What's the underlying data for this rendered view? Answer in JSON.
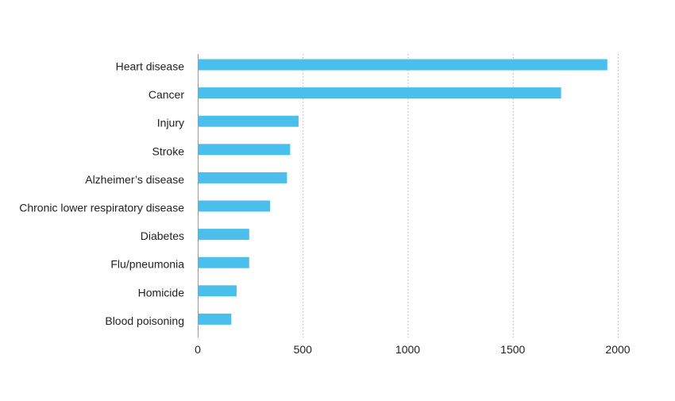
{
  "chart_data": {
    "type": "bar",
    "orientation": "horizontal",
    "title": "",
    "xlabel": "",
    "ylabel": "",
    "categories": [
      "Heart disease",
      "Cancer",
      "Injury",
      "Stroke",
      "Alzheimer’s disease",
      "Chronic lower respiratory disease",
      "Diabetes",
      "Flu/pneumonia",
      "Homicide",
      "Blood poisoning"
    ],
    "values": [
      1950,
      1730,
      480,
      440,
      425,
      345,
      245,
      245,
      185,
      160
    ],
    "xlim": [
      0,
      2000
    ],
    "xticks": [
      0,
      500,
      1000,
      1500,
      2000
    ],
    "grid": "vertical dotted",
    "legend": "none",
    "bar_color": "#4bbfec",
    "grid_color": "#b5b5b5",
    "axis_color": "#9a9a9a"
  }
}
